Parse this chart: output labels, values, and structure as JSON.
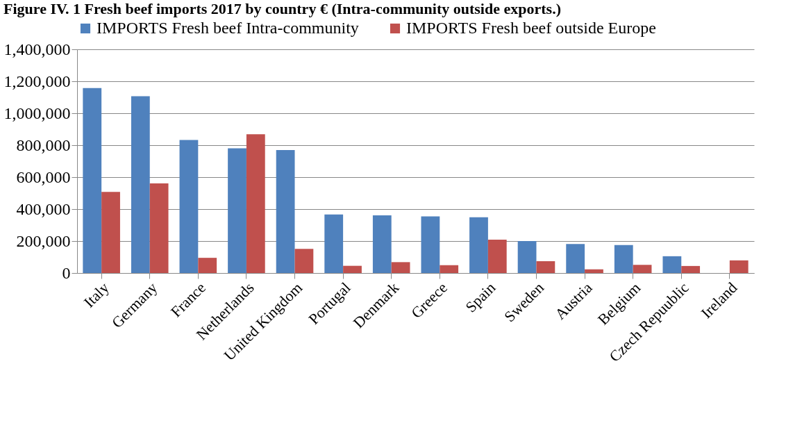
{
  "chart_data": {
    "type": "bar",
    "title": "Figure IV. 1 Fresh beef imports 2017 by country € (Intra-community outside exports.)",
    "categories": [
      "Italy",
      "Germany",
      "France",
      "Netherlands",
      "United Kingdom",
      "Portugal",
      "Denmark",
      "Greece",
      "Spain",
      "Sweden",
      "Austria",
      "Belgium",
      "Czech Repuublic",
      "Ireland"
    ],
    "series": [
      {
        "name": "IMPORTS Fresh beef Intra-community",
        "color": "#4f81bd",
        "values": [
          1158000,
          1106000,
          833000,
          780000,
          770000,
          366000,
          361000,
          354000,
          349000,
          200000,
          181000,
          175000,
          105000,
          null
        ]
      },
      {
        "name": "IMPORTS Fresh beef outside Europe",
        "color": "#c0504d",
        "values": [
          508000,
          561000,
          95000,
          868000,
          151000,
          45000,
          68000,
          49000,
          209000,
          74000,
          23000,
          51000,
          44000,
          79000
        ]
      }
    ],
    "ylim": [
      0,
      1400000
    ],
    "yticks": [
      0,
      {
        "value": 200000,
        "label": "200,000"
      },
      {
        "value": 400000,
        "label": "400,000"
      },
      {
        "value": 600000,
        "label": "600,000"
      },
      {
        "value": 800000,
        "label": "800,000"
      },
      {
        "value": 1000000,
        "label": "1,000,000"
      },
      {
        "value": 1200000,
        "label": "1,200,000"
      },
      {
        "value": 1400000,
        "label": "1,400,000"
      }
    ],
    "grid": "y",
    "legend": "top"
  }
}
